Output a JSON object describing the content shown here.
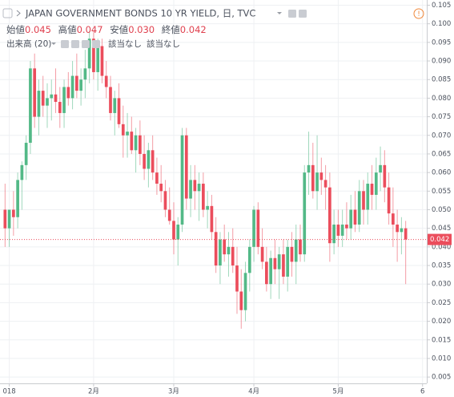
{
  "header": {
    "title": "JAPAN GOVERNMENT BONDS 10 YR YIELD, 日, TVC",
    "ohlc_labels": [
      "始値",
      "高値",
      "安値",
      "終値"
    ],
    "ohlc_values": [
      {
        "value": 0.045,
        "label": "0.045"
      },
      {
        "value": 0.047,
        "label": "0.047"
      },
      {
        "value": 0.03,
        "label": "0.030"
      },
      {
        "value": 0.042,
        "label": "0.042"
      }
    ],
    "volume_label": "出来高 (20)",
    "volume_values": [
      "該当なし",
      "該当なし"
    ]
  },
  "chart_data": {
    "type": "candlestick",
    "up_color": "#53b987",
    "down_color": "#eb4d5c",
    "open": [
      0.05,
      0.045,
      0.05,
      0.048,
      0.058,
      0.062,
      0.068,
      0.088,
      0.075,
      0.082,
      0.078,
      0.08,
      0.081,
      0.079,
      0.076,
      0.083,
      0.08,
      0.086,
      0.082,
      0.085,
      0.088,
      0.096,
      0.087,
      0.094,
      0.086,
      0.083,
      0.076,
      0.08,
      0.073,
      0.07,
      0.071,
      0.066,
      0.07,
      0.065,
      0.061,
      0.066,
      0.06,
      0.057,
      0.055,
      0.05,
      0.047,
      0.042,
      0.046,
      0.07,
      0.053,
      0.058,
      0.055,
      0.057,
      0.05,
      0.051,
      0.044,
      0.035,
      0.042,
      0.038,
      0.04,
      0.035,
      0.028,
      0.023,
      0.033,
      0.04,
      0.05,
      0.04,
      0.036,
      0.03,
      0.037,
      0.034,
      0.038,
      0.032,
      0.04,
      0.036,
      0.042,
      0.038,
      0.06,
      0.062,
      0.055,
      0.06,
      0.058,
      0.056,
      0.041,
      0.046,
      0.043,
      0.046,
      0.045,
      0.05,
      0.046,
      0.055,
      0.05,
      0.057,
      0.054,
      0.06,
      0.062,
      0.056,
      0.049,
      0.046,
      0.044,
      0.045
    ],
    "high": [
      0.057,
      0.05,
      0.055,
      0.06,
      0.063,
      0.07,
      0.09,
      0.092,
      0.085,
      0.086,
      0.084,
      0.085,
      0.088,
      0.083,
      0.085,
      0.087,
      0.09,
      0.092,
      0.088,
      0.093,
      0.098,
      0.098,
      0.096,
      0.096,
      0.09,
      0.086,
      0.082,
      0.084,
      0.078,
      0.076,
      0.075,
      0.072,
      0.074,
      0.07,
      0.068,
      0.07,
      0.064,
      0.062,
      0.058,
      0.056,
      0.052,
      0.048,
      0.072,
      0.072,
      0.062,
      0.062,
      0.06,
      0.06,
      0.055,
      0.054,
      0.048,
      0.044,
      0.046,
      0.044,
      0.045,
      0.04,
      0.034,
      0.036,
      0.042,
      0.051,
      0.052,
      0.045,
      0.04,
      0.039,
      0.042,
      0.04,
      0.042,
      0.042,
      0.044,
      0.046,
      0.046,
      0.062,
      0.071,
      0.068,
      0.07,
      0.064,
      0.062,
      0.06,
      0.05,
      0.05,
      0.05,
      0.052,
      0.054,
      0.055,
      0.058,
      0.058,
      0.06,
      0.062,
      0.064,
      0.067,
      0.066,
      0.06,
      0.056,
      0.05,
      0.048,
      0.047
    ],
    "low": [
      0.04,
      0.04,
      0.043,
      0.045,
      0.05,
      0.058,
      0.065,
      0.072,
      0.07,
      0.075,
      0.072,
      0.074,
      0.076,
      0.072,
      0.072,
      0.078,
      0.077,
      0.08,
      0.078,
      0.08,
      0.084,
      0.085,
      0.082,
      0.084,
      0.08,
      0.074,
      0.07,
      0.072,
      0.064,
      0.064,
      0.065,
      0.06,
      0.062,
      0.058,
      0.056,
      0.058,
      0.054,
      0.052,
      0.048,
      0.046,
      0.038,
      0.035,
      0.044,
      0.05,
      0.048,
      0.05,
      0.047,
      0.048,
      0.045,
      0.042,
      0.033,
      0.03,
      0.036,
      0.032,
      0.033,
      0.022,
      0.018,
      0.02,
      0.028,
      0.036,
      0.038,
      0.034,
      0.028,
      0.026,
      0.03,
      0.026,
      0.03,
      0.028,
      0.032,
      0.03,
      0.036,
      0.036,
      0.054,
      0.053,
      0.05,
      0.054,
      0.05,
      0.036,
      0.038,
      0.04,
      0.04,
      0.042,
      0.042,
      0.044,
      0.044,
      0.046,
      0.046,
      0.05,
      0.05,
      0.055,
      0.052,
      0.046,
      0.04,
      0.036,
      0.038,
      0.03
    ],
    "close": [
      0.045,
      0.05,
      0.048,
      0.058,
      0.062,
      0.068,
      0.088,
      0.075,
      0.082,
      0.078,
      0.08,
      0.081,
      0.079,
      0.076,
      0.083,
      0.08,
      0.086,
      0.082,
      0.085,
      0.088,
      0.096,
      0.087,
      0.094,
      0.086,
      0.083,
      0.076,
      0.08,
      0.073,
      0.07,
      0.071,
      0.066,
      0.07,
      0.065,
      0.061,
      0.066,
      0.06,
      0.057,
      0.055,
      0.05,
      0.047,
      0.042,
      0.046,
      0.07,
      0.053,
      0.058,
      0.055,
      0.057,
      0.05,
      0.051,
      0.044,
      0.035,
      0.042,
      0.038,
      0.04,
      0.035,
      0.028,
      0.023,
      0.033,
      0.04,
      0.05,
      0.04,
      0.036,
      0.03,
      0.037,
      0.034,
      0.038,
      0.032,
      0.04,
      0.036,
      0.042,
      0.038,
      0.06,
      0.062,
      0.055,
      0.06,
      0.058,
      0.056,
      0.041,
      0.046,
      0.043,
      0.046,
      0.045,
      0.05,
      0.046,
      0.055,
      0.05,
      0.057,
      0.054,
      0.06,
      0.062,
      0.056,
      0.049,
      0.046,
      0.044,
      0.045,
      0.042
    ],
    "xlim": [
      -1.2,
      100
    ],
    "xticks": [
      {
        "value": 1,
        "label": "018"
      },
      {
        "value": 21,
        "label": "2月"
      },
      {
        "value": 40,
        "label": "3月"
      },
      {
        "value": 59,
        "label": "4月"
      },
      {
        "value": 79,
        "label": "5月"
      },
      {
        "value": 99,
        "label": "6"
      }
    ],
    "ylim": [
      0.0033,
      0.1064
    ],
    "yticks": [
      0.005,
      {
        "value": 0.01,
        "label": "0.010"
      },
      0.015,
      {
        "value": 0.02,
        "label": "0.020"
      },
      0.025,
      {
        "value": 0.03,
        "label": "0.030"
      },
      0.035,
      {
        "value": 0.04,
        "label": "0.040"
      },
      0.045,
      {
        "value": 0.05,
        "label": "0.050"
      },
      0.055,
      {
        "value": 0.06,
        "label": "0.060"
      },
      0.065,
      {
        "value": 0.07,
        "label": "0.070"
      },
      0.075,
      {
        "value": 0.08,
        "label": "0.080"
      },
      0.085,
      {
        "value": 0.09,
        "label": "0.090"
      },
      0.095,
      {
        "value": 0.1,
        "label": "0.100"
      },
      0.105
    ],
    "last_price": {
      "value": 0.042,
      "label": "0.042"
    },
    "grid": true
  }
}
